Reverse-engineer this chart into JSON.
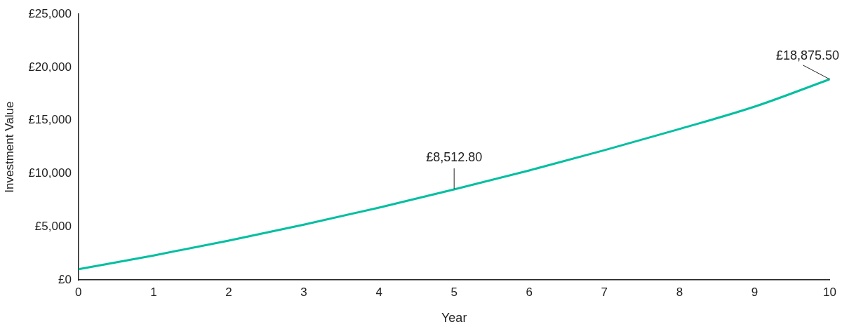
{
  "chart_data": {
    "type": "line",
    "xlabel": "Year",
    "ylabel": "Investment Value",
    "x": [
      0,
      1,
      2,
      3,
      4,
      5,
      6,
      7,
      8,
      9,
      10
    ],
    "series": [
      {
        "color": "#00bfa0",
        "values": [
          1000,
          2300,
          3700,
          5200,
          6800,
          8512.8,
          10300,
          12200,
          14200,
          16300,
          18875.5
        ]
      }
    ],
    "xlim": [
      0,
      10
    ],
    "xticks": [
      0,
      1,
      2,
      3,
      4,
      5,
      6,
      7,
      8,
      9,
      10
    ],
    "ylim": [
      0,
      25000
    ],
    "yticks": [
      {
        "value": 0,
        "label": "£0"
      },
      {
        "value": 5000,
        "label": "£5,000"
      },
      {
        "value": 10000,
        "label": "£10,000"
      },
      {
        "value": 15000,
        "label": "£15,000"
      },
      {
        "value": 20000,
        "label": "£20,000"
      },
      {
        "value": 25000,
        "label": "£25,000"
      }
    ],
    "annotations": [
      {
        "text": "£8,512.80",
        "x": 5,
        "y": 8512.8
      },
      {
        "text": "£18,875.50",
        "x": 10,
        "y": 18875.5
      }
    ],
    "grid": false,
    "legend": false,
    "marker": "none",
    "line_style": "solid"
  }
}
